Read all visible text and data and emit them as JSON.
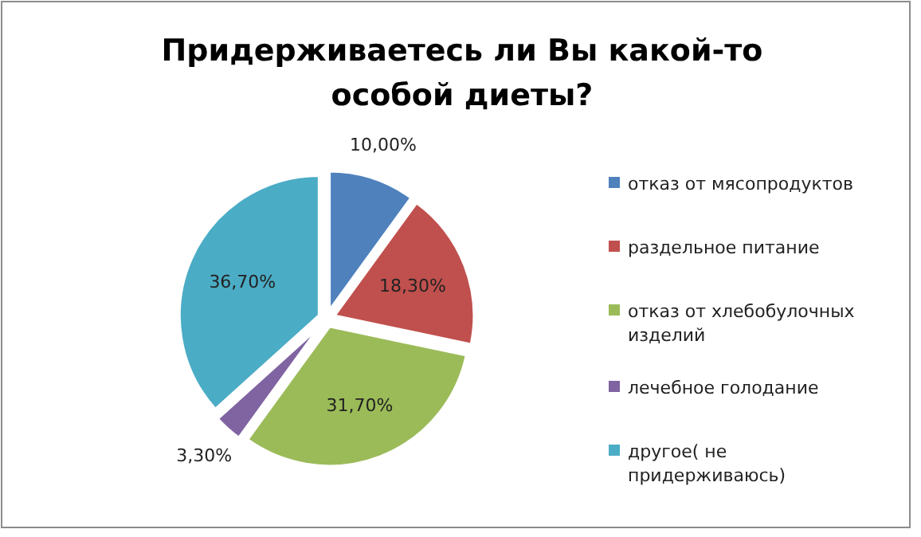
{
  "chart_data": {
    "type": "pie",
    "title": "Придерживаетесь ли Вы какой-то особой диеты?",
    "categories": [
      "отказ от мясопродуктов",
      "раздельное питание",
      "отказ от хлебобулочных изделий",
      "лечебное голодание",
      "другое( не придерживаюсь)"
    ],
    "values": [
      10.0,
      18.3,
      31.7,
      3.3,
      36.7
    ],
    "value_labels": [
      "10,00%",
      "18,30%",
      "31,70%",
      "3,30%",
      "36,70%"
    ],
    "colors": [
      "#4f81bd",
      "#c0504d",
      "#9bbb59",
      "#8064a2",
      "#4bacc6"
    ],
    "legend": "right"
  }
}
